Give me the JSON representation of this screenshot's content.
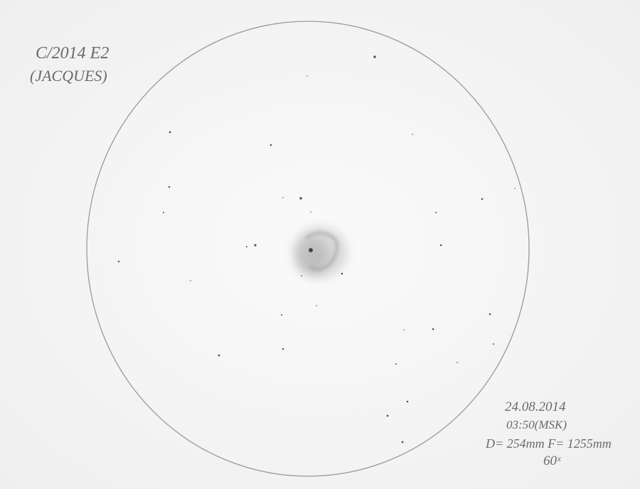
{
  "sketch": {
    "object": [
      "C/2014 E2",
      "(JACQUES)"
    ],
    "notes": [
      "24.08.2014",
      "03:50(MSK)",
      "D= 254mm  F= 1255mm",
      "60ˣ"
    ]
  }
}
